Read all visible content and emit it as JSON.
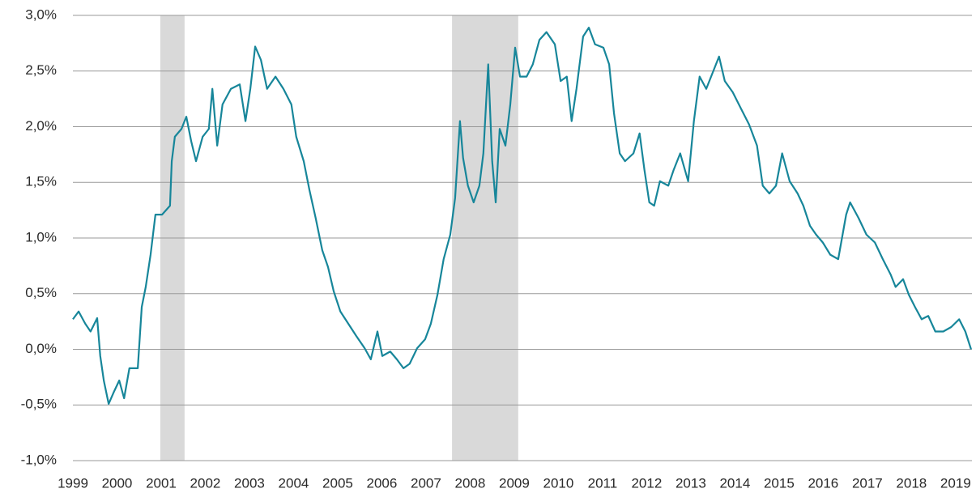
{
  "chart_data": {
    "type": "line",
    "x": [
      1999.0,
      1999.13,
      1999.28,
      1999.4,
      1999.55,
      1999.62,
      1999.7,
      1999.81,
      1999.92,
      2000.05,
      2000.16,
      2000.28,
      2000.47,
      2000.56,
      2000.65,
      2000.76,
      2000.87,
      2001.02,
      2001.2,
      2001.24,
      2001.31,
      2001.46,
      2001.57,
      2001.68,
      2001.79,
      2001.94,
      2002.08,
      2002.16,
      2002.27,
      2002.39,
      2002.58,
      2002.78,
      2002.91,
      2003.02,
      2003.13,
      2003.26,
      2003.4,
      2003.59,
      2003.77,
      2003.95,
      2004.06,
      2004.23,
      2004.36,
      2004.5,
      2004.65,
      2004.78,
      2004.91,
      2005.06,
      2005.24,
      2005.42,
      2005.61,
      2005.75,
      2005.9,
      2006.01,
      2006.19,
      2006.34,
      2006.49,
      2006.63,
      2006.8,
      2006.98,
      2007.11,
      2007.26,
      2007.4,
      2007.55,
      2007.66,
      2007.77,
      2007.84,
      2007.95,
      2008.08,
      2008.21,
      2008.3,
      2008.41,
      2008.5,
      2008.58,
      2008.67,
      2008.8,
      2008.91,
      2009.02,
      2009.13,
      2009.28,
      2009.42,
      2009.57,
      2009.73,
      2009.92,
      2010.05,
      2010.19,
      2010.3,
      2010.41,
      2010.56,
      2010.69,
      2010.83,
      2011.02,
      2011.15,
      2011.26,
      2011.39,
      2011.51,
      2011.7,
      2011.84,
      2011.95,
      2012.06,
      2012.17,
      2012.3,
      2012.49,
      2012.61,
      2012.76,
      2012.94,
      2013.07,
      2013.2,
      2013.35,
      2013.53,
      2013.64,
      2013.77,
      2013.95,
      2014.14,
      2014.32,
      2014.5,
      2014.63,
      2014.78,
      2014.93,
      2015.07,
      2015.24,
      2015.42,
      2015.55,
      2015.7,
      2015.84,
      2015.99,
      2016.16,
      2016.34,
      2016.52,
      2016.61,
      2016.8,
      2016.98,
      2017.17,
      2017.35,
      2017.53,
      2017.64,
      2017.81,
      2017.94,
      2018.08,
      2018.23,
      2018.38,
      2018.54,
      2018.72,
      2018.9,
      2019.08,
      2019.22,
      2019.35
    ],
    "series": [
      {
        "color": "#17869a",
        "values": [
          0.27,
          0.34,
          0.23,
          0.16,
          0.28,
          -0.06,
          -0.28,
          -0.49,
          -0.39,
          -0.28,
          -0.44,
          -0.17,
          -0.17,
          0.38,
          0.56,
          0.85,
          1.21,
          1.21,
          1.29,
          1.69,
          1.91,
          1.98,
          2.09,
          1.87,
          1.69,
          1.91,
          1.98,
          2.34,
          1.83,
          2.2,
          2.34,
          2.38,
          2.05,
          2.34,
          2.72,
          2.6,
          2.34,
          2.45,
          2.34,
          2.2,
          1.91,
          1.69,
          1.43,
          1.18,
          0.89,
          0.74,
          0.52,
          0.34,
          0.23,
          0.12,
          0.01,
          -0.09,
          0.16,
          -0.06,
          -0.02,
          -0.09,
          -0.17,
          -0.13,
          0.01,
          0.09,
          0.23,
          0.49,
          0.81,
          1.03,
          1.36,
          2.05,
          1.72,
          1.47,
          1.32,
          1.47,
          1.76,
          2.56,
          1.69,
          1.32,
          1.98,
          1.83,
          2.2,
          2.71,
          2.45,
          2.45,
          2.56,
          2.78,
          2.85,
          2.74,
          2.41,
          2.45,
          2.05,
          2.34,
          2.81,
          2.89,
          2.74,
          2.71,
          2.56,
          2.12,
          1.76,
          1.69,
          1.76,
          1.94,
          1.61,
          1.32,
          1.29,
          1.51,
          1.47,
          1.61,
          1.76,
          1.51,
          2.05,
          2.45,
          2.34,
          2.52,
          2.63,
          2.41,
          2.31,
          2.16,
          2.02,
          1.83,
          1.47,
          1.4,
          1.47,
          1.76,
          1.51,
          1.4,
          1.29,
          1.11,
          1.03,
          0.96,
          0.85,
          0.81,
          1.21,
          1.32,
          1.18,
          1.03,
          0.96,
          0.81,
          0.67,
          0.56,
          0.63,
          0.49,
          0.38,
          0.27,
          0.3,
          0.16,
          0.16,
          0.2,
          0.27,
          0.16,
          0.0
        ]
      }
    ],
    "shaded_regions": [
      [
        2000.98,
        2001.53
      ],
      [
        2007.59,
        2009.09
      ]
    ],
    "shade_color": "#d9d9d9",
    "xlim": [
      1999,
      2019.37
    ],
    "xticks": [
      1999,
      2000,
      2001,
      2002,
      2003,
      2004,
      2005,
      2006,
      2007,
      2008,
      2009,
      2010,
      2011,
      2012,
      2013,
      2014,
      2015,
      2016,
      2017,
      2018,
      2019
    ],
    "ylim": [
      -1,
      3
    ],
    "yticks": [
      {
        "value": -1,
        "label": "-1,0%"
      },
      {
        "value": -0.5,
        "label": "-0,5%"
      },
      {
        "value": 0,
        "label": "0,0%"
      },
      {
        "value": 0.5,
        "label": "0,5%"
      },
      {
        "value": 1,
        "label": "1,0%"
      },
      {
        "value": 1.5,
        "label": "1,5%"
      },
      {
        "value": 2,
        "label": "2,0%"
      },
      {
        "value": 2.5,
        "label": "2,5%"
      },
      {
        "value": 3,
        "label": "3,0%"
      }
    ],
    "grid": true
  }
}
